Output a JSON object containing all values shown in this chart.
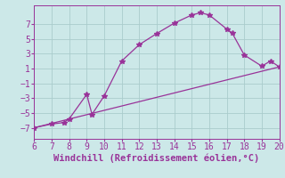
{
  "xlabel": "Windchill (Refroidissement éolien,°C)",
  "xlim": [
    6,
    20
  ],
  "ylim": [
    -8.5,
    9.5
  ],
  "yticks": [
    -7,
    -5,
    -3,
    -1,
    1,
    3,
    5,
    7
  ],
  "xticks": [
    6,
    7,
    8,
    9,
    10,
    11,
    12,
    13,
    14,
    15,
    16,
    17,
    18,
    19,
    20
  ],
  "line1_x": [
    6,
    7,
    7.7,
    8,
    9,
    9.3,
    10,
    11,
    12,
    13,
    14,
    15,
    15.5,
    16,
    17,
    17.3,
    18,
    19,
    19.5,
    20
  ],
  "line1_y": [
    -7.0,
    -6.5,
    -6.3,
    -5.8,
    -2.5,
    -5.2,
    -2.7,
    2.0,
    4.2,
    5.7,
    7.1,
    8.2,
    8.5,
    8.2,
    6.3,
    5.8,
    2.8,
    1.3,
    2.0,
    1.2
  ],
  "line2_x": [
    6,
    20
  ],
  "line2_y": [
    -7.0,
    1.2
  ],
  "line_color": "#993399",
  "bg_color": "#cce8e8",
  "grid_color": "#aacccc",
  "xlabel_fontsize": 7.5,
  "tick_fontsize": 7
}
